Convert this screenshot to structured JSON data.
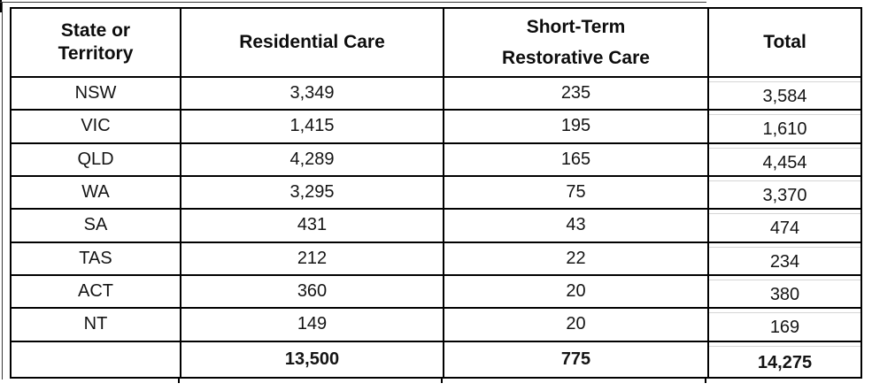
{
  "colors": {
    "border": "#000000",
    "text": "#141414",
    "background": "#ffffff"
  },
  "table": {
    "header": {
      "state": [
        "State or",
        "Territory"
      ],
      "residential": "Residential Care",
      "strc": [
        "Short-Term",
        "Restorative Care"
      ],
      "total": "Total"
    },
    "rows": [
      {
        "state": "NSW",
        "residential": "3,349",
        "strc": "235",
        "total": "3,584"
      },
      {
        "state": "VIC",
        "residential": "1,415",
        "strc": "195",
        "total": "1,610"
      },
      {
        "state": "QLD",
        "residential": "4,289",
        "strc": "165",
        "total": "4,454"
      },
      {
        "state": "WA",
        "residential": "3,295",
        "strc": "75",
        "total": "3,370"
      },
      {
        "state": "SA",
        "residential": "431",
        "strc": "43",
        "total": "474"
      },
      {
        "state": "TAS",
        "residential": "212",
        "strc": "22",
        "total": "234"
      },
      {
        "state": "ACT",
        "residential": "360",
        "strc": "20",
        "total": "380"
      },
      {
        "state": "NT",
        "residential": "149",
        "strc": "20",
        "total": "169"
      }
    ],
    "totals": {
      "state": "",
      "residential": "13,500",
      "strc": "775",
      "total": "14,275"
    }
  }
}
